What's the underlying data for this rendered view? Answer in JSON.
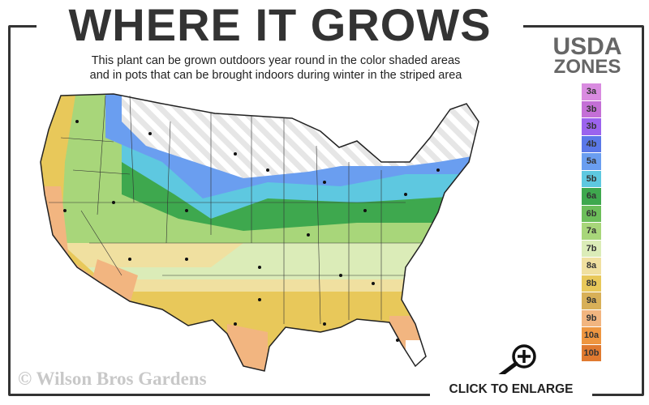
{
  "header": {
    "title": "WHERE IT GROWS",
    "subtitle_line1": "This plant can be grown outdoors year round in the color shaded areas",
    "subtitle_line2": "and in pots that can be brought indoors during winter in the striped area"
  },
  "legend": {
    "title_line1": "USDA",
    "title_line2": "ZONES",
    "zones": [
      {
        "label": "3a",
        "color": "#d98be0"
      },
      {
        "label": "3b",
        "color": "#c46fd6"
      },
      {
        "label": "3b",
        "color": "#9b63ee"
      },
      {
        "label": "4b",
        "color": "#5a78e8"
      },
      {
        "label": "5a",
        "color": "#6a9ef0"
      },
      {
        "label": "5b",
        "color": "#5ec8e0"
      },
      {
        "label": "6a",
        "color": "#3ea84e"
      },
      {
        "label": "6b",
        "color": "#6cbe5a"
      },
      {
        "label": "7a",
        "color": "#a8d67a"
      },
      {
        "label": "7b",
        "color": "#dbecb8"
      },
      {
        "label": "8a",
        "color": "#f0e0a0"
      },
      {
        "label": "8b",
        "color": "#e8c85a"
      },
      {
        "label": "9a",
        "color": "#d8b058"
      },
      {
        "label": "9b",
        "color": "#f2b580"
      },
      {
        "label": "10a",
        "color": "#ee9640"
      },
      {
        "label": "10b",
        "color": "#e07a30"
      }
    ]
  },
  "map": {
    "striped_area_color": "#f2f2f2"
  },
  "footer": {
    "watermark": "© Wilson Bros Gardens",
    "enlarge_label": "CLICK TO ENLARGE",
    "zoom_icon": "magnifier-plus-icon"
  }
}
